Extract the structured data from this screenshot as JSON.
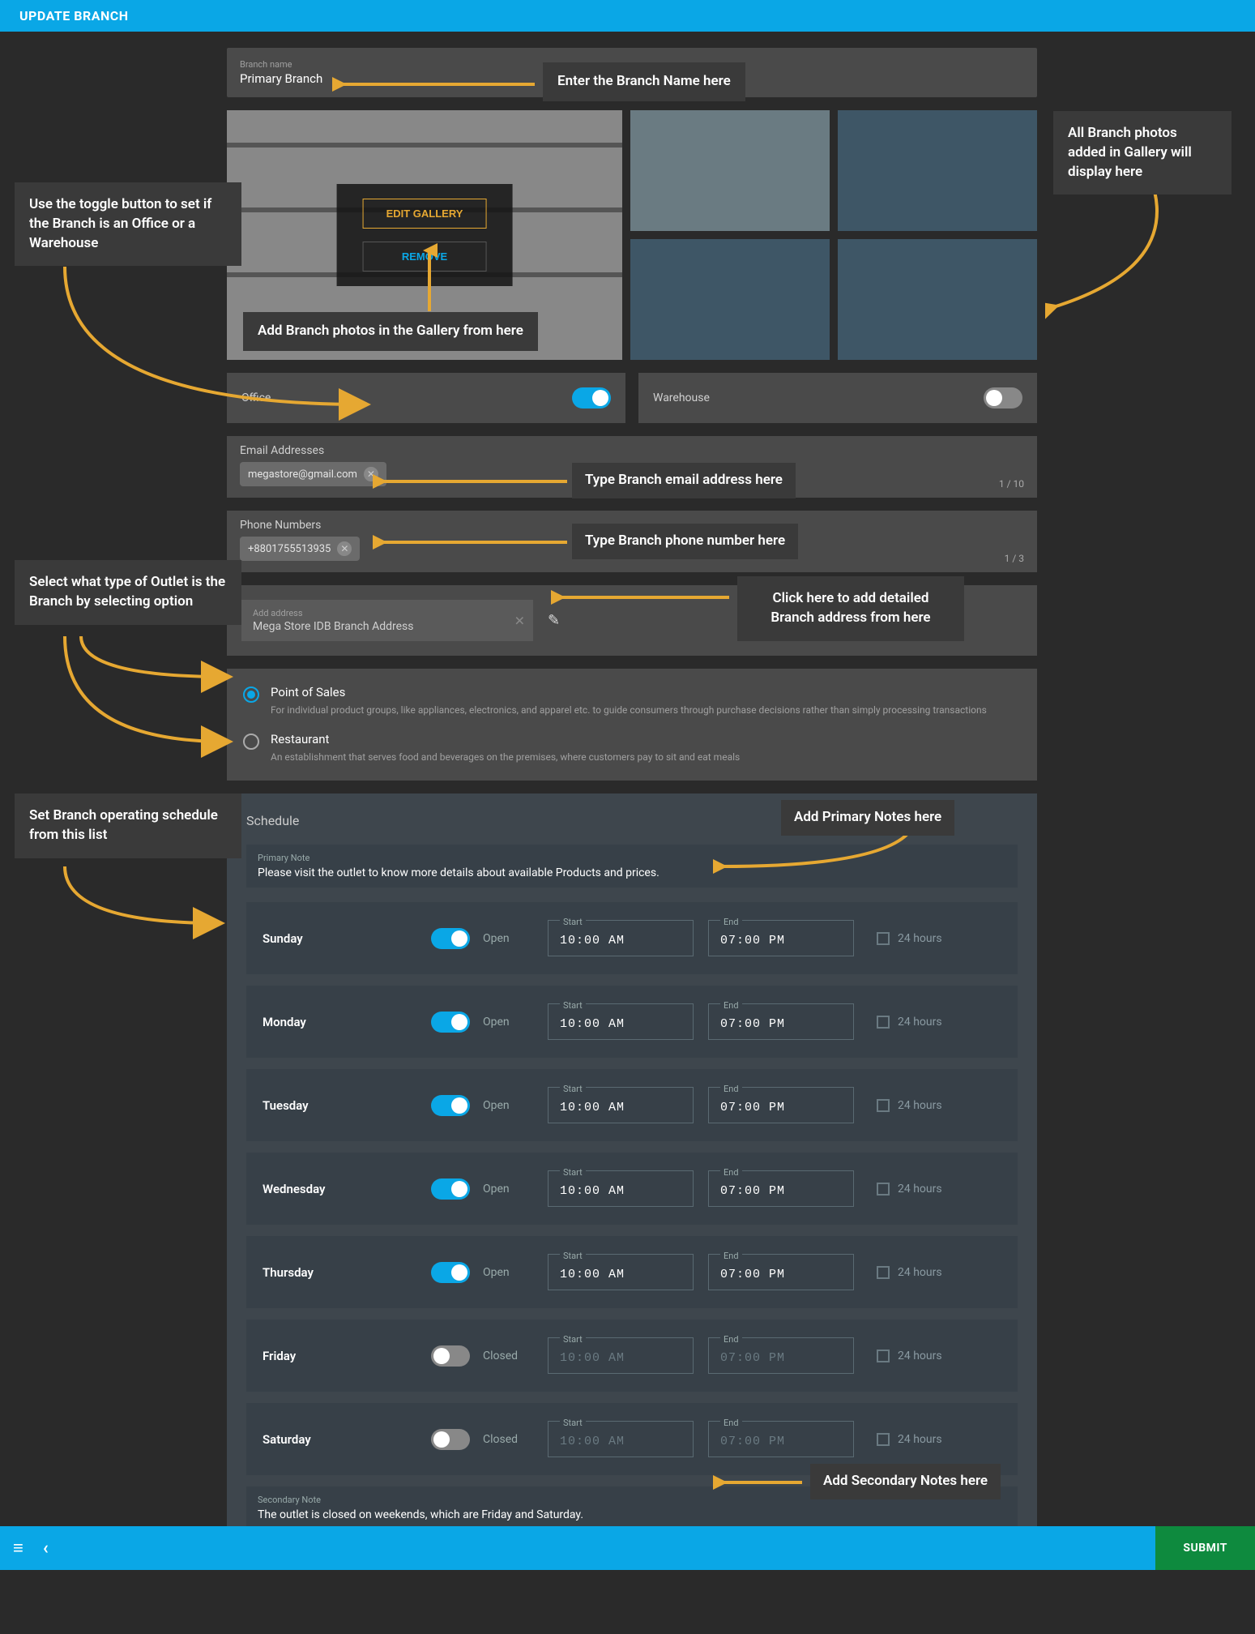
{
  "header": {
    "title": "UPDATE BRANCH"
  },
  "branch_name": {
    "label": "Branch name",
    "value": "Primary Branch"
  },
  "gallery": {
    "edit_btn": "EDIT GALLERY",
    "remove_btn": "REMOVE"
  },
  "toggles": {
    "office": {
      "label": "Office",
      "on": true
    },
    "warehouse": {
      "label": "Warehouse",
      "on": false
    }
  },
  "email": {
    "label": "Email Addresses",
    "chip": "megastore@gmail.com",
    "counter": "1 / 10"
  },
  "phone": {
    "label": "Phone Numbers",
    "chip": "+8801755513935",
    "counter": "1 / 3"
  },
  "address": {
    "label": "Add address",
    "value": "Mega Store IDB Branch Address"
  },
  "outlet_types": {
    "pos": {
      "title": "Point of Sales",
      "desc": "For individual product groups, like appliances, electronics, and apparel etc. to guide consumers through purchase decisions rather than simply processing transactions"
    },
    "restaurant": {
      "title": "Restaurant",
      "desc": "An establishment that serves food and beverages on the premises, where customers pay to sit and eat meals"
    }
  },
  "schedule": {
    "title": "Schedule",
    "primary_label": "Primary Note",
    "primary_note": "Please visit the outlet to know more details about available Products and prices.",
    "start_label": "Start",
    "end_label": "End",
    "open_text": "Open",
    "closed_text": "Closed",
    "h24_text": "24 hours",
    "days": [
      {
        "name": "Sunday",
        "open": true,
        "start": "10:00 AM",
        "end": "07:00 PM"
      },
      {
        "name": "Monday",
        "open": true,
        "start": "10:00 AM",
        "end": "07:00 PM"
      },
      {
        "name": "Tuesday",
        "open": true,
        "start": "10:00 AM",
        "end": "07:00 PM"
      },
      {
        "name": "Wednesday",
        "open": true,
        "start": "10:00 AM",
        "end": "07:00 PM"
      },
      {
        "name": "Thursday",
        "open": true,
        "start": "10:00 AM",
        "end": "07:00 PM"
      },
      {
        "name": "Friday",
        "open": false,
        "start": "10:00 AM",
        "end": "07:00 PM"
      },
      {
        "name": "Saturday",
        "open": false,
        "start": "10:00 AM",
        "end": "07:00 PM"
      }
    ],
    "secondary_label": "Secondary Note",
    "secondary_note": "The outlet is closed on weekends, which are Friday and Saturday."
  },
  "footer": {
    "submit": "SUBMIT"
  },
  "callouts": {
    "branch_name": "Enter the Branch Name here",
    "gallery_photos": "All Branch photos added in Gallery will display here",
    "add_photos": "Add Branch photos in the Gallery from here",
    "toggle_hint": "Use the toggle button to set if the Branch is an Office or a Warehouse",
    "email_hint": "Type Branch email address here",
    "phone_hint": "Type Branch phone number here",
    "address_hint": "Click here to add detailed Branch address from here",
    "outlet_hint": "Select what type of Outlet is the Branch by selecting option",
    "schedule_hint": "Set Branch operating schedule from this list",
    "primary_note_hint": "Add Primary Notes here",
    "secondary_note_hint": "Add Secondary Notes here"
  },
  "colors": {
    "accent": "#0aa7e6",
    "arrow": "#e6a832",
    "submit": "#0e8a3e"
  }
}
